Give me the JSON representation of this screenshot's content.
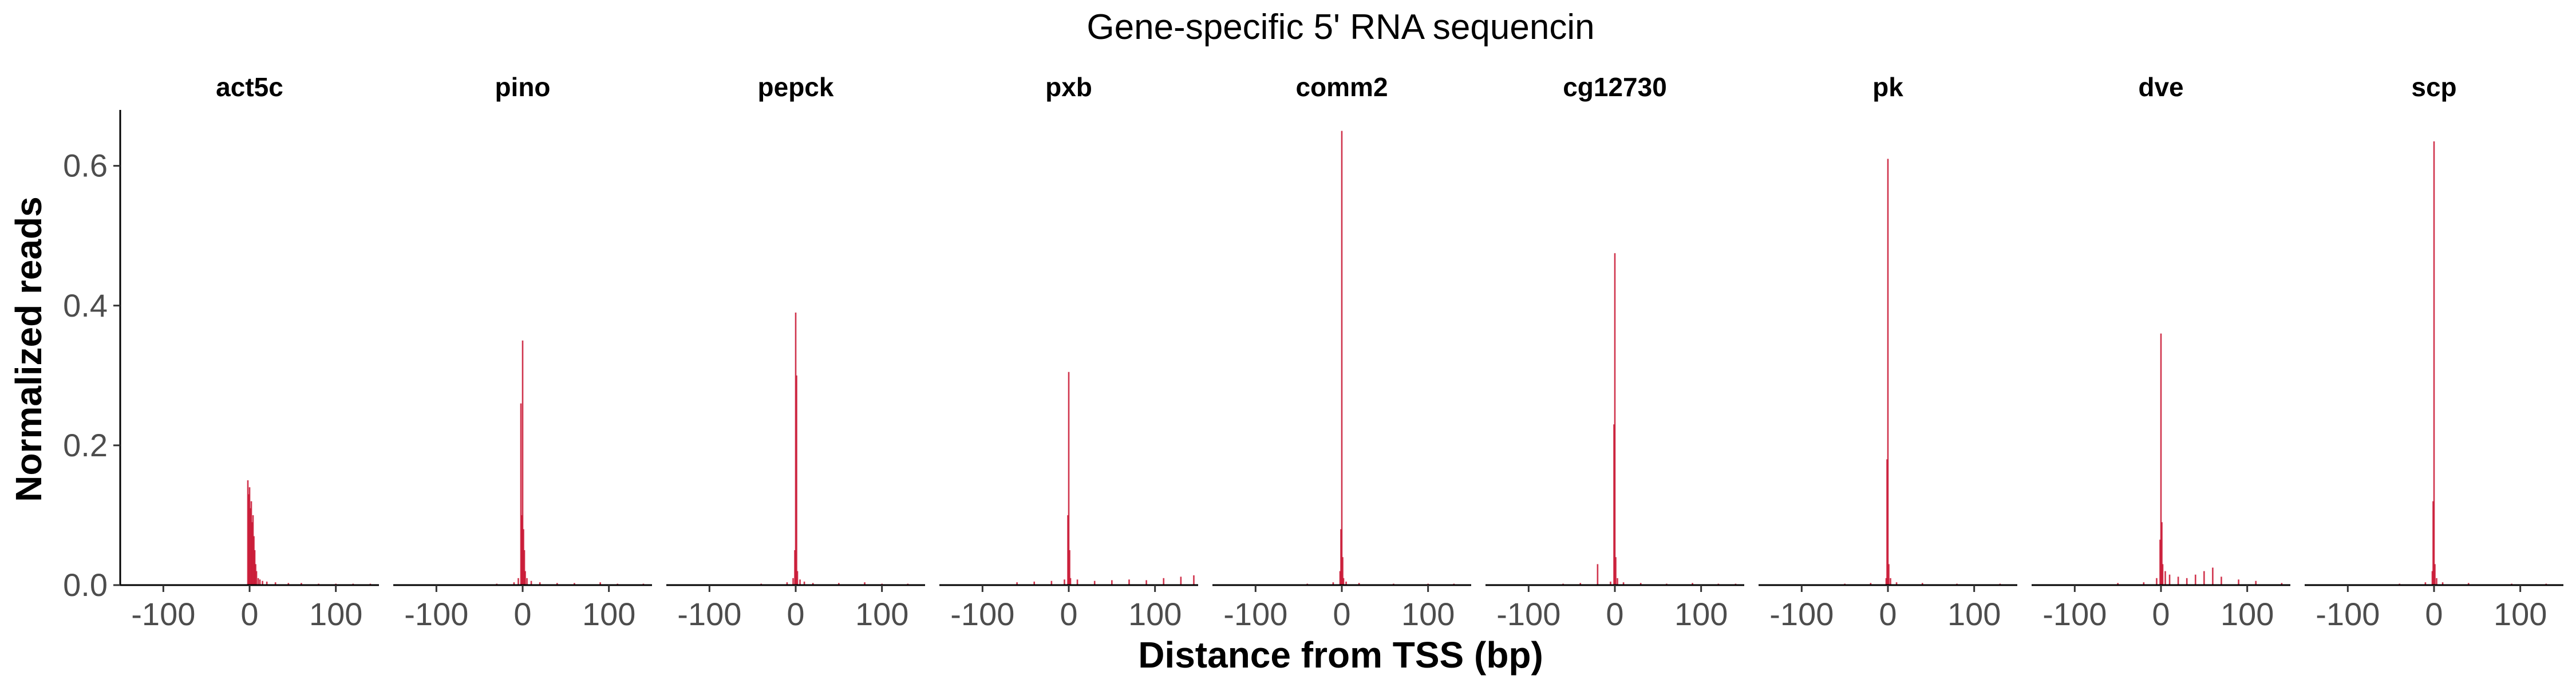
{
  "chart_data": {
    "type": "bar",
    "title": "Gene-specific 5' RNA sequencin",
    "xlabel": "Distance from TSS (bp)",
    "ylabel": "Normalized reads",
    "xlim": [
      -150,
      150
    ],
    "ylim": [
      0,
      0.68
    ],
    "x_ticks": [
      -100,
      0,
      100
    ],
    "x_tick_labels": [
      "-100",
      "0",
      "100"
    ],
    "y_ticks": [
      0.0,
      0.2,
      0.4,
      0.6
    ],
    "y_tick_labels": [
      "0.0",
      "0.2",
      "0.4",
      "0.6"
    ],
    "bar_color": "#c8102e",
    "grid": false,
    "panels": [
      {
        "name": "act5c",
        "x": [
          -2,
          -1,
          0,
          1,
          2,
          3,
          4,
          5,
          6,
          7,
          8,
          10,
          12,
          15,
          20,
          30,
          45,
          60,
          80,
          100,
          120,
          140
        ],
        "values": [
          0.15,
          0.13,
          0.14,
          0.11,
          0.12,
          0.09,
          0.1,
          0.07,
          0.05,
          0.03,
          0.02,
          0.01,
          0.008,
          0.006,
          0.005,
          0.004,
          0.003,
          0.003,
          0.002,
          0.002,
          0.002,
          0.002
        ]
      },
      {
        "name": "pino",
        "x": [
          -30,
          -10,
          -5,
          -2,
          -1,
          0,
          1,
          2,
          3,
          5,
          10,
          20,
          40,
          60,
          90,
          110,
          140
        ],
        "values": [
          0.002,
          0.004,
          0.01,
          0.26,
          0.1,
          0.35,
          0.08,
          0.05,
          0.02,
          0.01,
          0.006,
          0.004,
          0.003,
          0.003,
          0.004,
          0.002,
          0.002
        ]
      },
      {
        "name": "pepck",
        "x": [
          -40,
          -10,
          -3,
          -1,
          0,
          1,
          2,
          5,
          10,
          20,
          50,
          80,
          100,
          130
        ],
        "values": [
          0.002,
          0.004,
          0.01,
          0.05,
          0.39,
          0.3,
          0.02,
          0.008,
          0.005,
          0.003,
          0.003,
          0.004,
          0.002,
          0.002
        ]
      },
      {
        "name": "pxb",
        "x": [
          -60,
          -40,
          -20,
          -5,
          -1,
          0,
          1,
          2,
          10,
          30,
          50,
          70,
          90,
          110,
          130,
          145
        ],
        "values": [
          0.004,
          0.005,
          0.006,
          0.008,
          0.1,
          0.305,
          0.05,
          0.01,
          0.008,
          0.006,
          0.007,
          0.008,
          0.007,
          0.01,
          0.012,
          0.014
        ]
      },
      {
        "name": "comm2",
        "x": [
          -40,
          -10,
          -2,
          -1,
          0,
          1,
          2,
          5,
          20,
          60,
          100,
          130
        ],
        "values": [
          0.002,
          0.004,
          0.02,
          0.08,
          0.65,
          0.04,
          0.01,
          0.005,
          0.003,
          0.002,
          0.002,
          0.002
        ]
      },
      {
        "name": "cg12730",
        "x": [
          -60,
          -40,
          -20,
          -5,
          -1,
          0,
          1,
          3,
          10,
          30,
          60,
          90,
          120,
          140
        ],
        "values": [
          0.002,
          0.003,
          0.03,
          0.005,
          0.23,
          0.475,
          0.04,
          0.01,
          0.004,
          0.003,
          0.002,
          0.003,
          0.002,
          0.002
        ]
      },
      {
        "name": "pk",
        "x": [
          -50,
          -20,
          -2,
          -1,
          0,
          1,
          3,
          10,
          40,
          80,
          130
        ],
        "values": [
          0.002,
          0.003,
          0.01,
          0.18,
          0.61,
          0.03,
          0.01,
          0.004,
          0.003,
          0.002,
          0.002
        ]
      },
      {
        "name": "dve",
        "x": [
          -50,
          -20,
          -5,
          -1,
          0,
          1,
          2,
          5,
          10,
          20,
          30,
          40,
          50,
          60,
          70,
          90,
          110,
          140
        ],
        "values": [
          0.003,
          0.004,
          0.01,
          0.065,
          0.36,
          0.09,
          0.03,
          0.02,
          0.015,
          0.012,
          0.01,
          0.015,
          0.02,
          0.025,
          0.012,
          0.008,
          0.006,
          0.003
        ]
      },
      {
        "name": "scp",
        "x": [
          -40,
          -10,
          -2,
          -1,
          0,
          1,
          3,
          10,
          40,
          90,
          130
        ],
        "values": [
          0.002,
          0.004,
          0.02,
          0.12,
          0.635,
          0.03,
          0.01,
          0.004,
          0.003,
          0.002,
          0.002
        ]
      }
    ]
  }
}
